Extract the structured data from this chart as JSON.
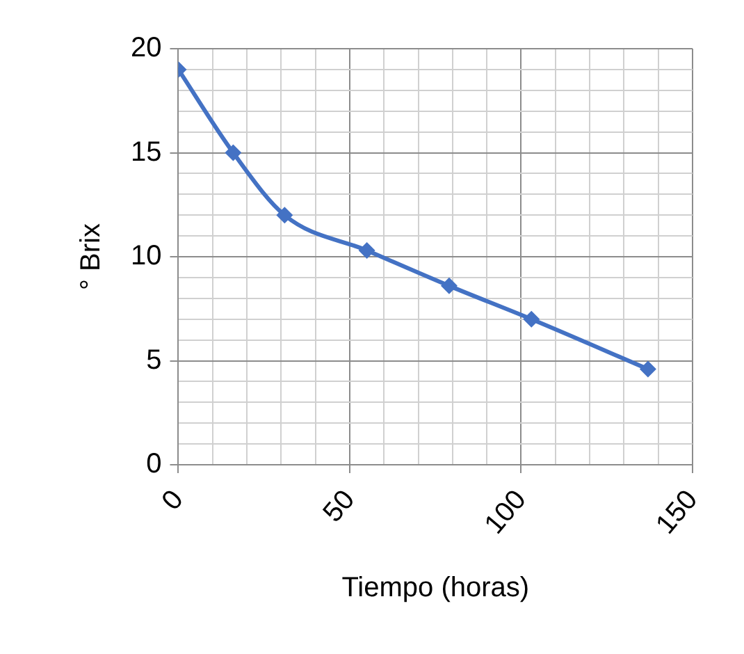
{
  "chart_data": {
    "type": "line",
    "xlabel": "Tiempo (horas)",
    "ylabel": "° Brix",
    "x": [
      0,
      16,
      31,
      55,
      79,
      103,
      137
    ],
    "series": [
      {
        "color": "#4472c4",
        "values": [
          19,
          15,
          12,
          10.3,
          8.6,
          7,
          4.6
        ]
      }
    ],
    "xlim": [
      0,
      150
    ],
    "xticks": [
      0,
      {
        "value": 10,
        "label": null
      },
      {
        "value": 20,
        "label": null
      },
      {
        "value": 30,
        "label": null
      },
      {
        "value": 40,
        "label": null
      },
      50,
      {
        "value": 60,
        "label": null
      },
      {
        "value": 70,
        "label": null
      },
      {
        "value": 80,
        "label": null
      },
      {
        "value": 90,
        "label": null
      },
      100,
      {
        "value": 110,
        "label": null
      },
      {
        "value": 120,
        "label": null
      },
      {
        "value": 130,
        "label": null
      },
      {
        "value": 140,
        "label": null
      },
      150
    ],
    "ylim": [
      0,
      20
    ],
    "yticks": [
      0,
      {
        "value": 1,
        "label": null
      },
      {
        "value": 2,
        "label": null
      },
      {
        "value": 3,
        "label": null
      },
      {
        "value": 4,
        "label": null
      },
      5,
      {
        "value": 6,
        "label": null
      },
      {
        "value": 7,
        "label": null
      },
      {
        "value": 8,
        "label": null
      },
      {
        "value": 9,
        "label": null
      },
      10,
      {
        "value": 11,
        "label": null
      },
      {
        "value": 12,
        "label": null
      },
      {
        "value": 13,
        "label": null
      },
      {
        "value": 14,
        "label": null
      },
      15,
      {
        "value": 16,
        "label": null
      },
      {
        "value": 17,
        "label": null
      },
      {
        "value": 18,
        "label": null
      },
      {
        "value": 19,
        "label": null
      },
      20
    ],
    "grid": true,
    "legend": false,
    "marker": "diamond",
    "line_style": "solid"
  }
}
